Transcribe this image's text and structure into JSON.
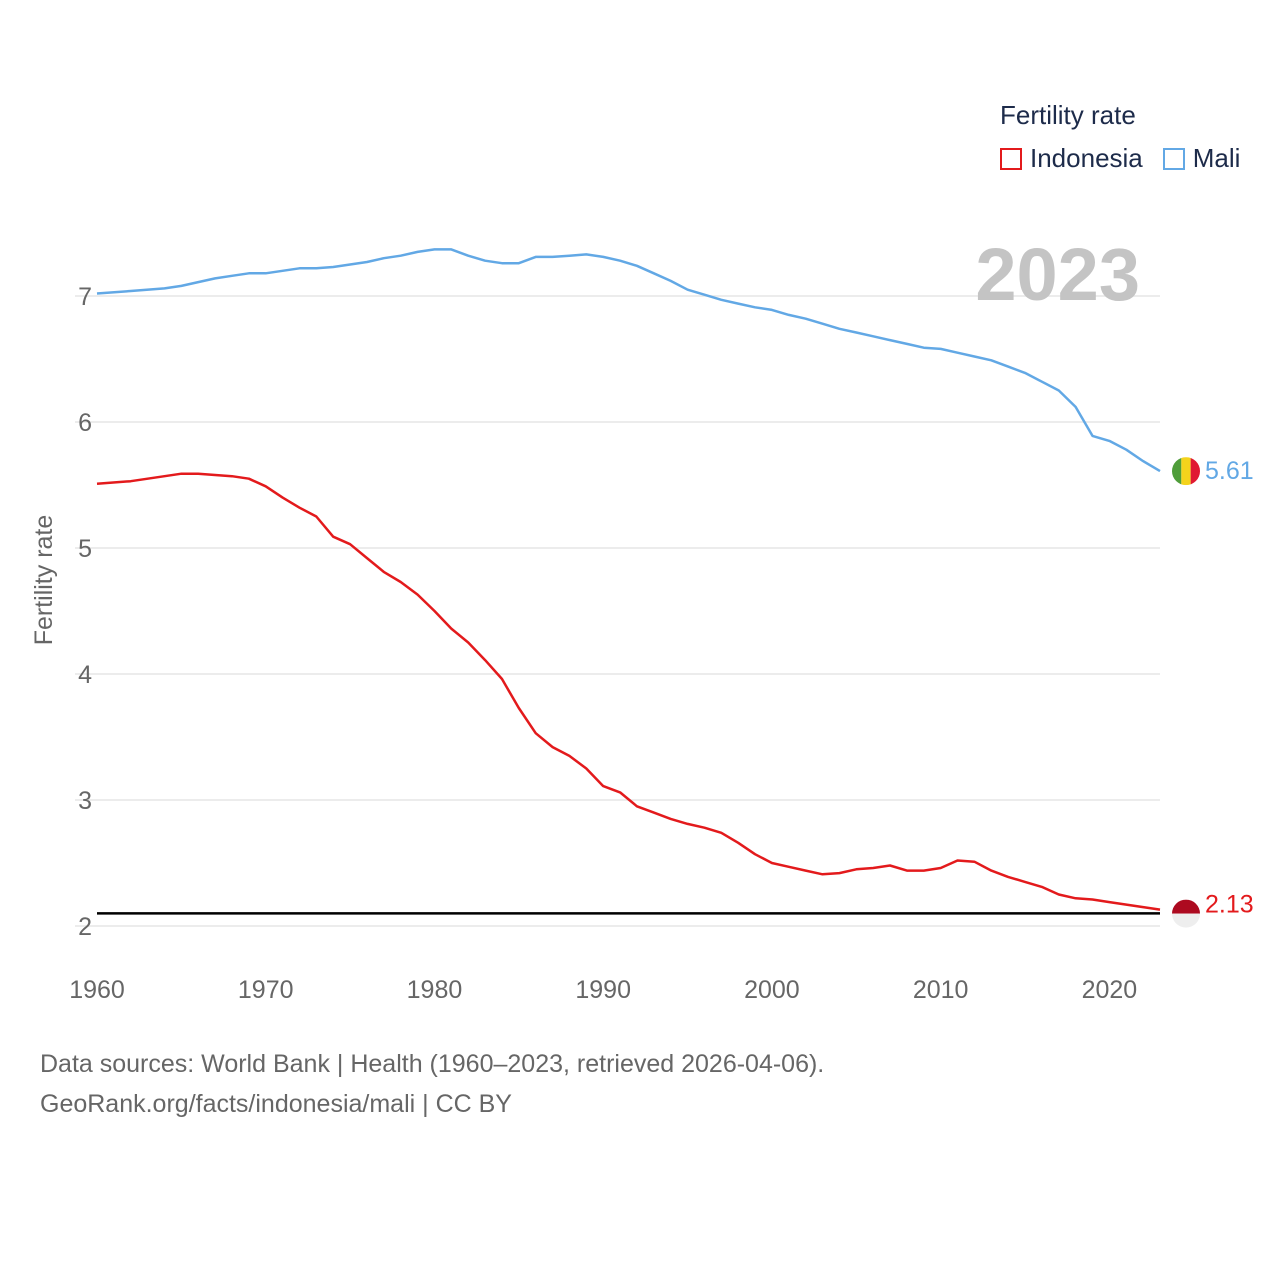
{
  "chart_data": {
    "type": "line",
    "title": "Fertility rate",
    "xlabel": "",
    "ylabel": "Fertility rate",
    "year_label": "2023",
    "xlim": [
      1960,
      2023
    ],
    "ylim": [
      2,
      7
    ],
    "x_ticks": [
      1960,
      1970,
      1980,
      1990,
      2000,
      2010,
      2020
    ],
    "y_ticks": [
      2,
      3,
      4,
      5,
      6,
      7
    ],
    "reference_line": 2.1,
    "series": [
      {
        "name": "Indonesia",
        "color": "#e31a1c",
        "end_label": "2.13",
        "flag": "indonesia-flag",
        "x": [
          1960,
          1962,
          1964,
          1965,
          1966,
          1968,
          1969,
          1970,
          1971,
          1972,
          1973,
          1974,
          1975,
          1976,
          1977,
          1978,
          1979,
          1980,
          1981,
          1982,
          1983,
          1984,
          1985,
          1986,
          1987,
          1988,
          1989,
          1990,
          1991,
          1992,
          1993,
          1994,
          1995,
          1996,
          1997,
          1998,
          1999,
          2000,
          2001,
          2002,
          2003,
          2004,
          2005,
          2006,
          2007,
          2008,
          2009,
          2010,
          2011,
          2012,
          2013,
          2014,
          2015,
          2016,
          2017,
          2018,
          2019,
          2020,
          2021,
          2022,
          2023
        ],
        "values": [
          5.51,
          5.53,
          5.57,
          5.59,
          5.59,
          5.57,
          5.55,
          5.49,
          5.4,
          5.32,
          5.25,
          5.09,
          5.03,
          4.92,
          4.81,
          4.73,
          4.63,
          4.5,
          4.36,
          4.25,
          4.11,
          3.96,
          3.73,
          3.53,
          3.42,
          3.35,
          3.25,
          3.11,
          3.06,
          2.95,
          2.9,
          2.85,
          2.81,
          2.78,
          2.74,
          2.66,
          2.57,
          2.5,
          2.47,
          2.44,
          2.41,
          2.42,
          2.45,
          2.46,
          2.48,
          2.44,
          2.44,
          2.46,
          2.52,
          2.51,
          2.44,
          2.39,
          2.35,
          2.31,
          2.25,
          2.22,
          2.21,
          2.19,
          2.17,
          2.15,
          2.13
        ]
      },
      {
        "name": "Mali",
        "color": "#62a8e5",
        "end_label": "5.61",
        "flag": "mali-flag",
        "x": [
          1960,
          1962,
          1964,
          1965,
          1966,
          1967,
          1968,
          1969,
          1970,
          1971,
          1972,
          1973,
          1974,
          1975,
          1976,
          1977,
          1978,
          1979,
          1980,
          1981,
          1982,
          1983,
          1984,
          1985,
          1986,
          1987,
          1988,
          1989,
          1990,
          1991,
          1992,
          1993,
          1994,
          1995,
          1996,
          1997,
          1998,
          1999,
          2000,
          2001,
          2002,
          2003,
          2004,
          2005,
          2006,
          2007,
          2008,
          2009,
          2010,
          2011,
          2012,
          2013,
          2014,
          2015,
          2016,
          2017,
          2018,
          2019,
          2020,
          2021,
          2022,
          2023
        ],
        "values": [
          7.02,
          7.04,
          7.06,
          7.08,
          7.11,
          7.14,
          7.16,
          7.18,
          7.18,
          7.2,
          7.22,
          7.22,
          7.23,
          7.25,
          7.27,
          7.3,
          7.32,
          7.35,
          7.37,
          7.37,
          7.32,
          7.28,
          7.26,
          7.26,
          7.31,
          7.31,
          7.32,
          7.33,
          7.31,
          7.28,
          7.24,
          7.18,
          7.12,
          7.05,
          7.01,
          6.97,
          6.94,
          6.91,
          6.89,
          6.85,
          6.82,
          6.78,
          6.74,
          6.71,
          6.68,
          6.65,
          6.62,
          6.59,
          6.58,
          6.55,
          6.52,
          6.49,
          6.44,
          6.39,
          6.32,
          6.25,
          6.12,
          5.89,
          5.85,
          5.78,
          5.69,
          5.61
        ]
      }
    ]
  },
  "footer": {
    "line1": "Data sources: World Bank | Health (1960–2023, retrieved 2026-04-06).",
    "line2": "GeoRank.org/facts/indonesia/mali | CC BY"
  },
  "colors": {
    "grid": "#e6e6e6",
    "axis_text": "#666666",
    "year_label": "#c4c4c4",
    "legend_text": "#1d2b4a",
    "reference": "#000000",
    "indonesia_flag_red": "#ad0a20",
    "mali_flag_green": "#4f9d3a",
    "mali_flag_yellow": "#f4d31c",
    "mali_flag_red": "#e01933"
  }
}
